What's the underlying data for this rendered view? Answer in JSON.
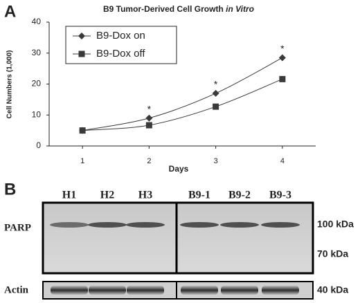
{
  "chart_data": {
    "type": "line",
    "title": "B9 Tumor-Derived Cell Growth",
    "title_emphasis": "in Vitro",
    "xlabel": "Days",
    "ylabel": "Cell Numbers (1,000)",
    "x": [
      1,
      2,
      3,
      4
    ],
    "xlim": [
      0.5,
      4.5
    ],
    "xticks": [
      1,
      2,
      3,
      4
    ],
    "ylim": [
      0,
      40
    ],
    "yticks": [
      0,
      10,
      20,
      30,
      40
    ],
    "grid": false,
    "legend": "upper left",
    "series": [
      {
        "name": "B9-Dox on",
        "color": "#3a3a3a",
        "marker": "diamond",
        "values": [
          5,
          9,
          17,
          28.5
        ]
      },
      {
        "name": "B9-Dox off",
        "color": "#3a3a3a",
        "marker": "square",
        "values": [
          5,
          6.7,
          12.7,
          21.6
        ]
      }
    ],
    "annotations": [
      {
        "text": "*",
        "x": 2
      },
      {
        "text": "*",
        "x": 3
      },
      {
        "text": "*",
        "x": 4
      }
    ]
  },
  "panels": [
    "A",
    "B"
  ],
  "blot": {
    "lanes": [
      "H1",
      "H2",
      "H3",
      "B9-1",
      "B9-2",
      "B9-3"
    ],
    "rows": [
      "PARP",
      "Actin"
    ],
    "markers": [
      "100 kDa",
      "70 kDa",
      "40 kDa"
    ]
  }
}
